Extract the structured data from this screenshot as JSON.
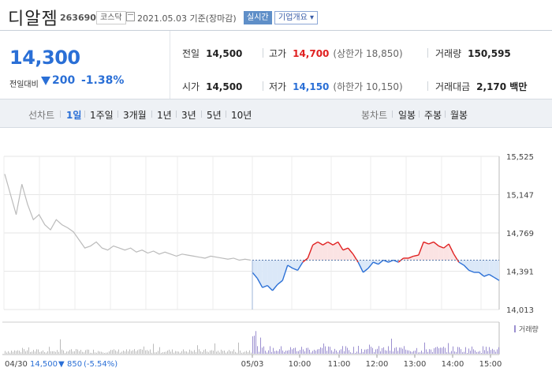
{
  "header": {
    "name": "디알젬",
    "code": "263690",
    "market": "코스닥",
    "date": "2021.05.03",
    "basis": "기준(장마감)",
    "realtime_label": "실시간",
    "company_info_label": "기업개요",
    "dropdown_glyph": "▾"
  },
  "summary": {
    "price": "14,300",
    "change_label": "전일대비",
    "change_value": "200",
    "change_pct": "-1.38%",
    "prev_close_label": "전일",
    "prev_close": "14,500",
    "open_label": "시가",
    "open": "14,500",
    "high_label": "고가",
    "high": "14,700",
    "upper_limit": "(상한가 18,850)",
    "low_label": "저가",
    "low": "14,150",
    "lower_limit": "(하한가 10,150)",
    "volume_label": "거래량",
    "volume": "150,595",
    "amount_label": "거래대금",
    "amount": "2,170 백만"
  },
  "period_bar": {
    "line_label": "선차트",
    "line_options": [
      "1일",
      "1주일",
      "3개월",
      "1년",
      "3년",
      "5년",
      "10년"
    ],
    "active": "1일",
    "candle_label": "봉차트",
    "candle_options": [
      "일봉",
      "주봉",
      "월봉"
    ]
  },
  "colors": {
    "up": "#e02020",
    "down": "#2a6fd6",
    "prev_day": "#bbbbbb",
    "volume": "#9b8fd0"
  },
  "chart_data": {
    "type": "line",
    "title": "",
    "ylabel": "",
    "y_ticks": [
      15525,
      15147,
      14769,
      14391,
      14013
    ],
    "ylim": [
      14013,
      15525
    ],
    "base_price": 14500,
    "x_labels": [
      "04/30",
      "05/03",
      "10:00",
      "11:00",
      "12:00",
      "13:00",
      "14:00",
      "15:00"
    ],
    "volume_label": "거래량",
    "bottom_info": {
      "date": "04/30",
      "close": "14,500",
      "arrow": "▼",
      "change": "850",
      "change_pct": "(-5.54%)"
    },
    "prev_day_series": [
      15350,
      15150,
      14950,
      15250,
      15050,
      14900,
      14950,
      14850,
      14800,
      14900,
      14850,
      14820,
      14780,
      14700,
      14620,
      14640,
      14680,
      14620,
      14600,
      14640,
      14620,
      14600,
      14620,
      14580,
      14600,
      14570,
      14590,
      14560,
      14580,
      14560,
      14540,
      14560,
      14550,
      14540,
      14530,
      14520,
      14540,
      14530,
      14520,
      14510,
      14520,
      14500,
      14510,
      14500
    ],
    "today_series": [
      14380,
      14320,
      14230,
      14250,
      14200,
      14260,
      14300,
      14450,
      14420,
      14400,
      14480,
      14520,
      14650,
      14680,
      14650,
      14680,
      14650,
      14680,
      14600,
      14620,
      14560,
      14480,
      14380,
      14420,
      14480,
      14460,
      14500,
      14480,
      14500,
      14480,
      14520,
      14520,
      14540,
      14550,
      14680,
      14660,
      14680,
      14640,
      14620,
      14660,
      14560,
      14480,
      14450,
      14400,
      14380,
      14380,
      14340,
      14360,
      14330,
      14300
    ]
  }
}
